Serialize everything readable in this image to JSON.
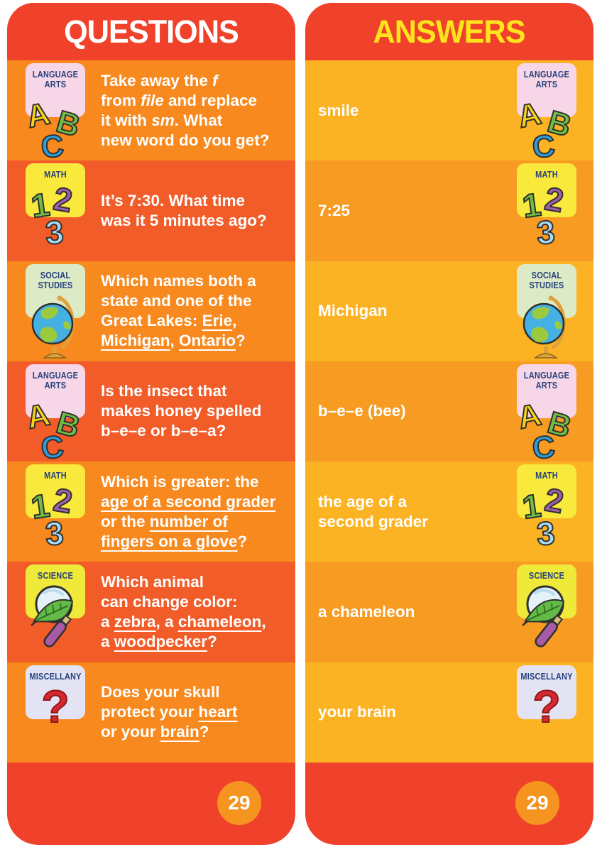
{
  "page_number": "29",
  "colors": {
    "header_red": "#F0422A",
    "questions_row_light": "#F7891E",
    "questions_row_dark": "#F15C28",
    "answers_row_light": "#FBB324",
    "answers_row_dark": "#F89B22",
    "questions_title_color": "#FFFFFF",
    "answers_title_color": "#FFE41D",
    "page_circle_orange": "#F5941F",
    "badge_label_navy": "#27427E"
  },
  "badges": {
    "language_arts": {
      "label": "LANGUAGE\nARTS",
      "bg": "#F7D6E7",
      "icon": "abc-letters-icon"
    },
    "math": {
      "label": "MATH",
      "bg": "#F8E93C",
      "icon": "numbers-123-icon"
    },
    "social_studies": {
      "label": "SOCIAL\nSTUDIES",
      "bg": "#DCEAC6",
      "icon": "globe-icon"
    },
    "science": {
      "label": "SCIENCE",
      "bg": "#EFE93A",
      "icon": "magnifier-leaf-icon"
    },
    "miscellany": {
      "label": "MISCELLANY",
      "bg": "#E4E3F3",
      "icon": "question-mark-icon"
    }
  },
  "questions_panel": {
    "title": "QUESTIONS",
    "rows": [
      {
        "subject": "language_arts",
        "segments": [
          {
            "t": "Take away the ",
            "s": "p"
          },
          {
            "t": "f",
            "s": "i"
          },
          {
            "t": "\nfrom ",
            "s": "p"
          },
          {
            "t": "file",
            "s": "i"
          },
          {
            "t": " and replace\nit with ",
            "s": "p"
          },
          {
            "t": "sm",
            "s": "i"
          },
          {
            "t": ". What\nnew word do you get?",
            "s": "p"
          }
        ]
      },
      {
        "subject": "math",
        "segments": [
          {
            "t": "It’s 7:30. What time\nwas it 5 minutes ago?",
            "s": "p"
          }
        ]
      },
      {
        "subject": "social_studies",
        "segments": [
          {
            "t": "Which names both a\nstate and one of the\nGreat Lakes: ",
            "s": "p"
          },
          {
            "t": "Erie",
            "s": "u"
          },
          {
            "t": ",\n",
            "s": "p"
          },
          {
            "t": "Michigan",
            "s": "u"
          },
          {
            "t": ", ",
            "s": "p"
          },
          {
            "t": "Ontario",
            "s": "u"
          },
          {
            "t": "?",
            "s": "p"
          }
        ]
      },
      {
        "subject": "language_arts",
        "segments": [
          {
            "t": "Is the insect that\nmakes honey spelled\nb–e–e or b–e–a?",
            "s": "p"
          }
        ]
      },
      {
        "subject": "math",
        "segments": [
          {
            "t": "Which is greater: the\n",
            "s": "p"
          },
          {
            "t": "age of a second grader",
            "s": "u"
          },
          {
            "t": "\nor the ",
            "s": "p"
          },
          {
            "t": "number of\nfingers on a glove",
            "s": "u"
          },
          {
            "t": "?",
            "s": "p"
          }
        ]
      },
      {
        "subject": "science",
        "segments": [
          {
            "t": "Which animal\ncan change color:\na ",
            "s": "p"
          },
          {
            "t": "zebra",
            "s": "u"
          },
          {
            "t": ", a ",
            "s": "p"
          },
          {
            "t": "chameleon",
            "s": "u"
          },
          {
            "t": ",\na ",
            "s": "p"
          },
          {
            "t": "woodpecker",
            "s": "u"
          },
          {
            "t": "?",
            "s": "p"
          }
        ]
      },
      {
        "subject": "miscellany",
        "segments": [
          {
            "t": "Does your skull\nprotect your ",
            "s": "p"
          },
          {
            "t": "heart",
            "s": "u"
          },
          {
            "t": "\nor your ",
            "s": "p"
          },
          {
            "t": "brain",
            "s": "u"
          },
          {
            "t": "?",
            "s": "p"
          }
        ]
      }
    ]
  },
  "answers_panel": {
    "title": "ANSWERS",
    "rows": [
      {
        "subject": "language_arts",
        "text": "smile"
      },
      {
        "subject": "math",
        "text": "7:25"
      },
      {
        "subject": "social_studies",
        "text": "Michigan"
      },
      {
        "subject": "language_arts",
        "text": "b–e–e (bee)"
      },
      {
        "subject": "math",
        "text": "the age of a\nsecond grader"
      },
      {
        "subject": "science",
        "text": "a chameleon"
      },
      {
        "subject": "miscellany",
        "text": "your brain"
      }
    ]
  }
}
